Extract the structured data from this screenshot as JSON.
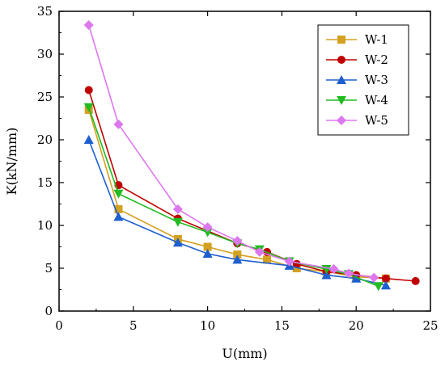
{
  "chart_data": {
    "type": "line",
    "title": "",
    "xlabel": "U(mm)",
    "ylabel": "K(kN/mm)",
    "xlim": [
      0,
      25
    ],
    "ylim": [
      0,
      35
    ],
    "xticks": [
      "0",
      "5",
      "10",
      "15",
      "20",
      "25"
    ],
    "yticks": [
      "0",
      "5",
      "10",
      "15",
      "20",
      "25",
      "30",
      "35"
    ],
    "grid": false,
    "legend_position": "top-right",
    "series": [
      {
        "name": "W-1",
        "color": "#D4A020",
        "marker": "square",
        "x": [
          2,
          4,
          8,
          10,
          12,
          14,
          16,
          18,
          20,
          22
        ],
        "y": [
          23.5,
          11.9,
          8.4,
          7.5,
          6.6,
          6.0,
          5.0,
          4.6,
          4.0,
          3.8
        ]
      },
      {
        "name": "W-2",
        "color": "#C00000",
        "marker": "circle",
        "x": [
          2,
          4,
          8,
          12,
          14,
          16,
          18,
          20,
          22,
          24
        ],
        "y": [
          25.8,
          14.7,
          10.8,
          7.9,
          6.9,
          5.5,
          4.6,
          4.2,
          3.8,
          3.5
        ]
      },
      {
        "name": "W-3",
        "color": "#1E5FD0",
        "marker": "triangle-up",
        "x": [
          2,
          4,
          8,
          10,
          12,
          15.5,
          18,
          20,
          22
        ],
        "y": [
          20.0,
          11.0,
          8.0,
          6.7,
          6.0,
          5.3,
          4.2,
          3.8,
          3.0
        ]
      },
      {
        "name": "W-4",
        "color": "#22BB22",
        "marker": "triangle-down",
        "x": [
          2,
          4,
          8,
          10,
          12,
          13.5,
          15.5,
          18,
          19.5,
          21.5
        ],
        "y": [
          23.8,
          13.7,
          10.4,
          9.2,
          7.9,
          7.2,
          5.8,
          4.9,
          4.3,
          2.9
        ]
      },
      {
        "name": "W-5",
        "color": "#DD77EE",
        "marker": "diamond",
        "x": [
          2,
          4,
          8,
          10,
          12,
          13.5,
          15.5,
          18.5,
          19.5,
          21.2
        ],
        "y": [
          33.4,
          21.8,
          11.9,
          9.8,
          8.2,
          6.9,
          5.8,
          4.9,
          4.4,
          3.9
        ]
      }
    ]
  }
}
